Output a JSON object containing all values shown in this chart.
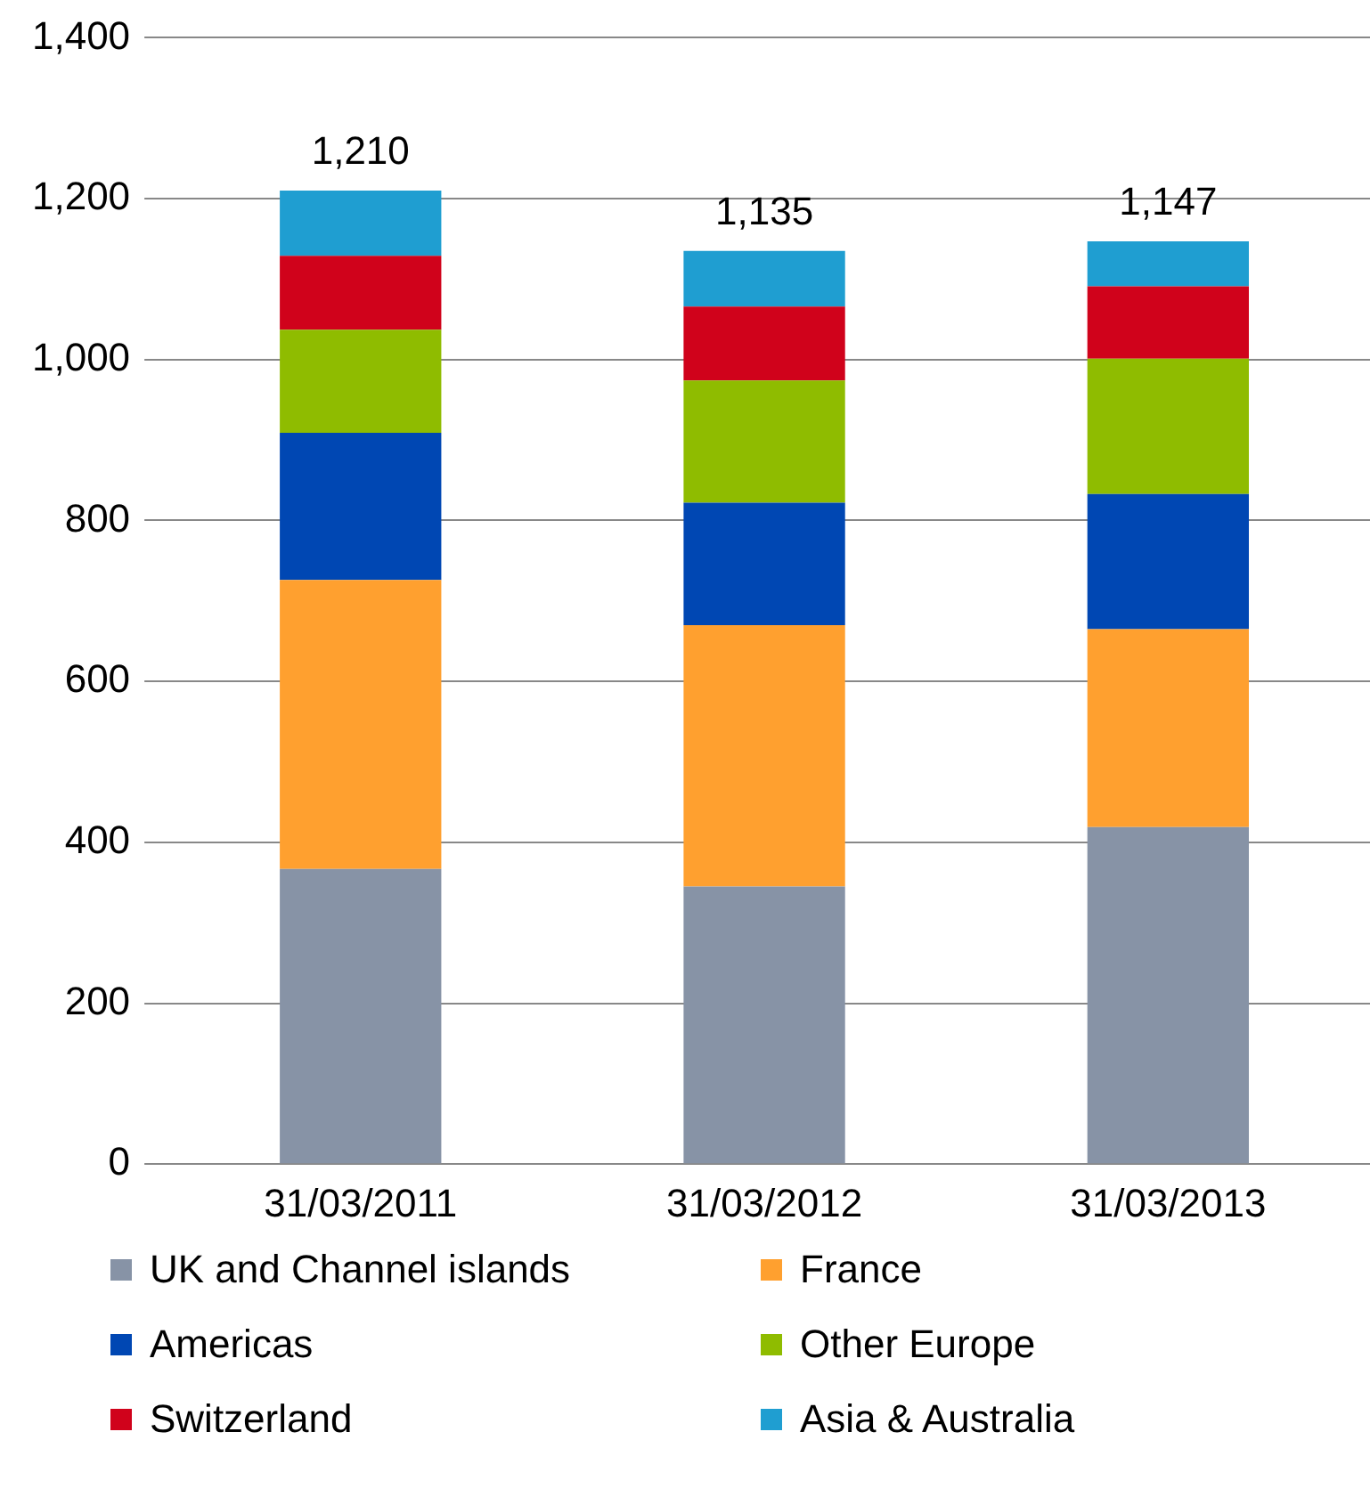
{
  "chart_data": {
    "type": "bar",
    "stacked": true,
    "categories": [
      "31/03/2011",
      "31/03/2012",
      "31/03/2013"
    ],
    "series": [
      {
        "name": "UK and Channel islands",
        "color": "#8793a6",
        "values": [
          367,
          345,
          419
        ]
      },
      {
        "name": "France",
        "color": "#ffa02f",
        "values": [
          359,
          325,
          246
        ]
      },
      {
        "name": "Americas",
        "color": "#0047b3",
        "values": [
          183,
          152,
          168
        ]
      },
      {
        "name": "Other Europe",
        "color": "#8fbc00",
        "values": [
          128,
          152,
          168
        ]
      },
      {
        "name": "Switzerland",
        "color": "#d0021b",
        "values": [
          92,
          92,
          90
        ]
      },
      {
        "name": "Asia & Australia",
        "color": "#1f9ed1",
        "values": [
          81,
          69,
          56
        ]
      }
    ],
    "totals": [
      "1,210",
      "1,135",
      "1,147"
    ],
    "ylim": [
      0,
      1400
    ],
    "yticks": [
      {
        "value": 0,
        "label": "0"
      },
      {
        "value": 200,
        "label": "200"
      },
      {
        "value": 400,
        "label": "400"
      },
      {
        "value": 600,
        "label": "600"
      },
      {
        "value": 800,
        "label": "800"
      },
      {
        "value": 1000,
        "label": "1,000"
      },
      {
        "value": 1200,
        "label": "1,200"
      },
      {
        "value": 1400,
        "label": "1,400"
      }
    ],
    "grid": "y",
    "legend": "bottom"
  }
}
